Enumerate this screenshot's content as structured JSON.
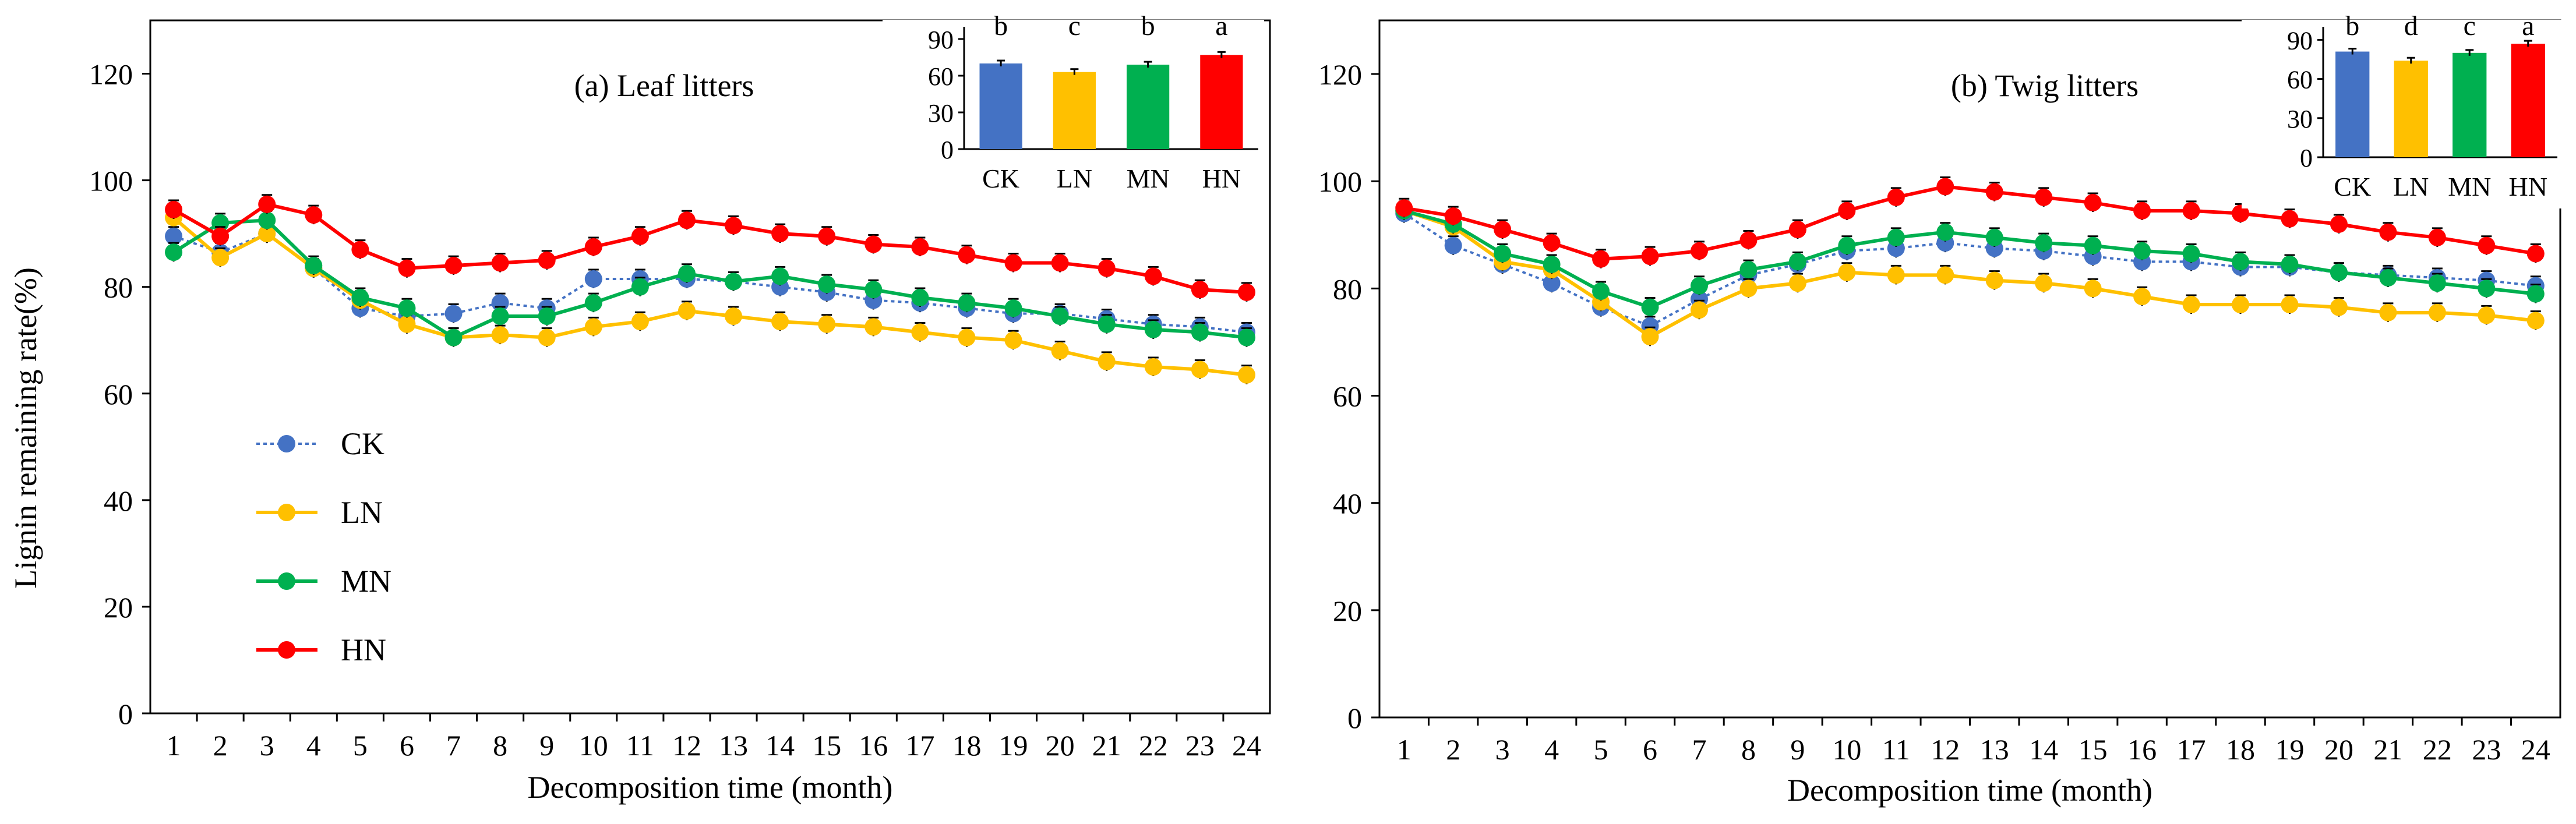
{
  "y_axis_label": "Lignin remaining rate(%)",
  "legend": [
    {
      "name": "CK",
      "color": "#4472C4",
      "dash": "6,6"
    },
    {
      "name": "LN",
      "color": "#FFC000",
      "dash": ""
    },
    {
      "name": "MN",
      "color": "#00B050",
      "dash": ""
    },
    {
      "name": "HN",
      "color": "#FF0000",
      "dash": ""
    }
  ],
  "chart_data": [
    {
      "type": "line",
      "title": "(a) Leaf litters",
      "xlabel": "Decomposition time (month)",
      "ylabel": "Lignin remaining rate(%)",
      "x": [
        1,
        2,
        3,
        4,
        5,
        6,
        7,
        8,
        9,
        10,
        11,
        12,
        13,
        14,
        15,
        16,
        17,
        18,
        19,
        20,
        21,
        22,
        23,
        24
      ],
      "ylim": [
        0,
        130
      ],
      "yticks": [
        0,
        20,
        40,
        60,
        80,
        100,
        120
      ],
      "series": [
        {
          "name": "CK",
          "values": [
            89.5,
            86.5,
            90,
            83.5,
            76,
            74.5,
            75,
            77,
            76,
            81.5,
            81.5,
            81.5,
            81,
            80,
            79,
            77.5,
            77,
            76,
            75,
            75,
            74,
            73,
            72.5,
            71.5
          ]
        },
        {
          "name": "LN",
          "values": [
            93,
            85.5,
            90,
            83.5,
            77.5,
            73,
            70.5,
            71,
            70.5,
            72.5,
            73.5,
            75.5,
            74.5,
            73.5,
            73,
            72.5,
            71.5,
            70.5,
            70,
            68,
            66,
            65,
            64.5,
            63.5
          ]
        },
        {
          "name": "MN",
          "values": [
            86.5,
            92,
            92.5,
            84,
            78,
            76,
            70.5,
            74.5,
            74.5,
            77,
            80,
            82.5,
            81,
            82,
            80.5,
            79.5,
            78,
            77,
            76,
            74.5,
            73,
            72,
            71.5,
            70.5
          ]
        },
        {
          "name": "HN",
          "values": [
            94.5,
            89.5,
            95.5,
            93.5,
            87,
            83.5,
            84,
            84.5,
            85,
            87.5,
            89.5,
            92.5,
            91.5,
            90,
            89.5,
            88,
            87.5,
            86,
            84.5,
            84.5,
            83.5,
            82,
            79.5,
            79
          ]
        }
      ],
      "inset": {
        "type": "bar",
        "categories": [
          "CK",
          "LN",
          "MN",
          "HN"
        ],
        "values": [
          70,
          63,
          69,
          77
        ],
        "letters": [
          "b",
          "c",
          "b",
          "a"
        ],
        "yticks": [
          0,
          30,
          60,
          90
        ],
        "ylim": [
          0,
          100
        ]
      }
    },
    {
      "type": "line",
      "title": "(b) Twig litters",
      "xlabel": "Decomposition time (month)",
      "x": [
        1,
        2,
        3,
        4,
        5,
        6,
        7,
        8,
        9,
        10,
        11,
        12,
        13,
        14,
        15,
        16,
        17,
        18,
        19,
        20,
        21,
        22,
        23,
        24
      ],
      "ylim": [
        0,
        130
      ],
      "yticks": [
        0,
        20,
        40,
        60,
        80,
        100,
        120
      ],
      "series": [
        {
          "name": "CK",
          "values": [
            94,
            88,
            84.5,
            81,
            76.5,
            73,
            78,
            82.5,
            84.5,
            87,
            87.5,
            88.5,
            87.5,
            87,
            86,
            85,
            85,
            84,
            84,
            83,
            82.5,
            82,
            81.5,
            80.5
          ]
        },
        {
          "name": "LN",
          "values": [
            94.5,
            91.5,
            85,
            83.5,
            77.5,
            71,
            76,
            80,
            81,
            83,
            82.5,
            82.5,
            81.5,
            81,
            80,
            78.5,
            77,
            77,
            77,
            76.5,
            75.5,
            75.5,
            75,
            74
          ]
        },
        {
          "name": "MN",
          "values": [
            94.5,
            92,
            86.5,
            84.5,
            79.5,
            76.5,
            80.5,
            83.5,
            85,
            88,
            89.5,
            90.5,
            89.5,
            88.5,
            88,
            87,
            86.5,
            85,
            84.5,
            83,
            82,
            81,
            80,
            79
          ]
        },
        {
          "name": "HN",
          "values": [
            95,
            93.5,
            91,
            88.5,
            85.5,
            86,
            87,
            89,
            91,
            94.5,
            97,
            99,
            98,
            97,
            96,
            94.5,
            94.5,
            94,
            93,
            92,
            90.5,
            89.5,
            88,
            86.5
          ]
        }
      ],
      "inset": {
        "type": "bar",
        "categories": [
          "CK",
          "LN",
          "MN",
          "HN"
        ],
        "values": [
          81,
          74,
          80,
          87
        ],
        "letters": [
          "b",
          "d",
          "c",
          "a"
        ],
        "yticks": [
          0,
          30,
          60,
          90
        ],
        "ylim": [
          0,
          100
        ]
      }
    }
  ]
}
